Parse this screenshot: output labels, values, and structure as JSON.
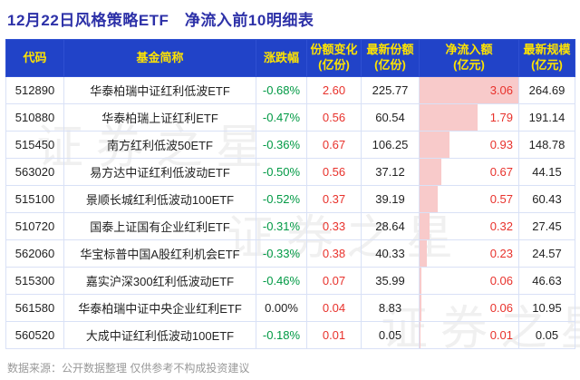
{
  "title": "12月22日风格策略ETF　净流入前10明细表",
  "footer": "数据来源：公开数据整理  仅供参考不构成投资建议",
  "watermark": {
    "text": "证券之星"
  },
  "colors": {
    "title_blue": "#2d31a8",
    "header_bg": "#2143c8",
    "header_text": "#ffe400",
    "down_green": "#009944",
    "up_red": "#e8322c",
    "bar_pink": "#f8caca"
  },
  "chart_data": {
    "type": "table",
    "title": "12月22日风格策略ETF　净流入前10明细表",
    "bar_column": "净流入额(亿元)",
    "bar_max": 3.06,
    "bar_values": [
      3.06,
      1.79,
      0.93,
      0.67,
      0.57,
      0.32,
      0.23,
      0.06,
      0.06,
      0.01
    ],
    "columns": [
      {
        "key": "code",
        "label": "代码",
        "sub": ""
      },
      {
        "key": "fund-name",
        "label": "基金简称",
        "sub": ""
      },
      {
        "key": "change",
        "label": "涨跌幅",
        "sub": ""
      },
      {
        "key": "share-change",
        "label": "份额变化",
        "sub": "(亿份)"
      },
      {
        "key": "latest-shares",
        "label": "最新份额",
        "sub": "(亿份)"
      },
      {
        "key": "net-inflow",
        "label": "净流入额",
        "sub": "(亿元)"
      },
      {
        "key": "scale",
        "label": "最新规模",
        "sub": "(亿元)"
      }
    ],
    "rows": [
      [
        "512890",
        "华泰柏瑞中证红利低波ETF",
        "-0.68%",
        "2.60",
        "225.77",
        "3.06",
        "264.69"
      ],
      [
        "510880",
        "华泰柏瑞上证红利ETF",
        "-0.47%",
        "0.56",
        "60.54",
        "1.79",
        "191.14"
      ],
      [
        "515450",
        "南方红利低波50ETF",
        "-0.36%",
        "0.67",
        "106.25",
        "0.93",
        "148.78"
      ],
      [
        "563020",
        "易方达中证红利低波动ETF",
        "-0.50%",
        "0.56",
        "37.12",
        "0.67",
        "44.15"
      ],
      [
        "515100",
        "景顺长城红利低波动100ETF",
        "-0.52%",
        "0.37",
        "39.19",
        "0.57",
        "60.43"
      ],
      [
        "510720",
        "国泰上证国有企业红利ETF",
        "-0.31%",
        "0.33",
        "28.64",
        "0.32",
        "27.45"
      ],
      [
        "562060",
        "华宝标普中国A股红利机会ETF",
        "-0.33%",
        "0.38",
        "40.33",
        "0.23",
        "24.57"
      ],
      [
        "515300",
        "嘉实沪深300红利低波动ETF",
        "-0.46%",
        "0.07",
        "35.99",
        "0.06",
        "46.63"
      ],
      [
        "561580",
        "华泰柏瑞中证中央企业红利ETF",
        "0.00%",
        "0.04",
        "8.83",
        "0.06",
        "10.95"
      ],
      [
        "560520",
        "大成中证红利低波动100ETF",
        "-0.18%",
        "0.01",
        "0.05",
        "0.01",
        "0.05"
      ]
    ]
  }
}
